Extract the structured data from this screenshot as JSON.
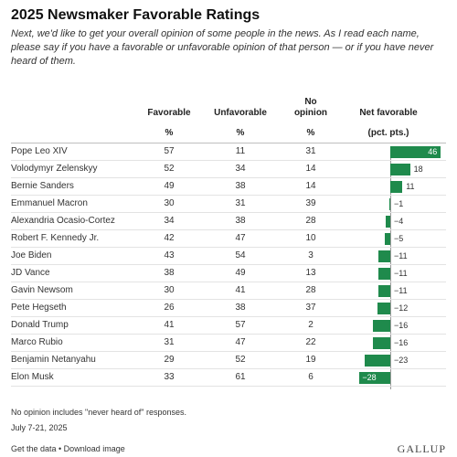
{
  "title": "2025 Newsmaker Favorable Ratings",
  "subtitle": "Next, we'd like to get your overall opinion of some people in the news. As I read each name, please say if you have a favorable or unfavorable opinion of that person — or if you have never heard of them.",
  "columns": {
    "favorable": "Favorable",
    "unfavorable": "Unfavorable",
    "no_opinion": "No opinion",
    "net": "Net favorable",
    "pct": "%",
    "net_unit": "(pct. pts.)"
  },
  "chart_data": {
    "type": "table",
    "columns": [
      "Favorable %",
      "Unfavorable %",
      "No opinion %",
      "Net favorable (pct. pts.)"
    ],
    "rows": [
      {
        "name": "Pope Leo XIV",
        "favorable": 57,
        "unfavorable": 11,
        "no_opinion": 31,
        "net": 46,
        "net_label": "46"
      },
      {
        "name": "Volodymyr Zelenskyy",
        "favorable": 52,
        "unfavorable": 34,
        "no_opinion": 14,
        "net": 18,
        "net_label": "18"
      },
      {
        "name": "Bernie Sanders",
        "favorable": 49,
        "unfavorable": 38,
        "no_opinion": 14,
        "net": 11,
        "net_label": "11"
      },
      {
        "name": "Emmanuel Macron",
        "favorable": 30,
        "unfavorable": 31,
        "no_opinion": 39,
        "net": -1,
        "net_label": "−1"
      },
      {
        "name": "Alexandria Ocasio-Cortez",
        "favorable": 34,
        "unfavorable": 38,
        "no_opinion": 28,
        "net": -4,
        "net_label": "−4"
      },
      {
        "name": "Robert F. Kennedy Jr.",
        "favorable": 42,
        "unfavorable": 47,
        "no_opinion": 10,
        "net": -5,
        "net_label": "−5"
      },
      {
        "name": "Joe Biden",
        "favorable": 43,
        "unfavorable": 54,
        "no_opinion": 3,
        "net": -11,
        "net_label": "−11"
      },
      {
        "name": "JD Vance",
        "favorable": 38,
        "unfavorable": 49,
        "no_opinion": 13,
        "net": -11,
        "net_label": "−11"
      },
      {
        "name": "Gavin Newsom",
        "favorable": 30,
        "unfavorable": 41,
        "no_opinion": 28,
        "net": -11,
        "net_label": "−11"
      },
      {
        "name": "Pete Hegseth",
        "favorable": 26,
        "unfavorable": 38,
        "no_opinion": 37,
        "net": -12,
        "net_label": "−12"
      },
      {
        "name": "Donald Trump",
        "favorable": 41,
        "unfavorable": 57,
        "no_opinion": 2,
        "net": -16,
        "net_label": "−16"
      },
      {
        "name": "Marco Rubio",
        "favorable": 31,
        "unfavorable": 47,
        "no_opinion": 22,
        "net": -16,
        "net_label": "−16"
      },
      {
        "name": "Benjamin Netanyahu",
        "favorable": 29,
        "unfavorable": 52,
        "no_opinion": 19,
        "net": -23,
        "net_label": "−23"
      },
      {
        "name": "Elon Musk",
        "favorable": 33,
        "unfavorable": 61,
        "no_opinion": 6,
        "net": -28,
        "net_label": "−28"
      }
    ],
    "bar_color": "#1f8a4c"
  },
  "footnote": "No opinion includes \"never heard of\" responses.",
  "date": "July 7-21, 2025",
  "footer_links": "Get the data • Download image",
  "brand": "GALLUP"
}
